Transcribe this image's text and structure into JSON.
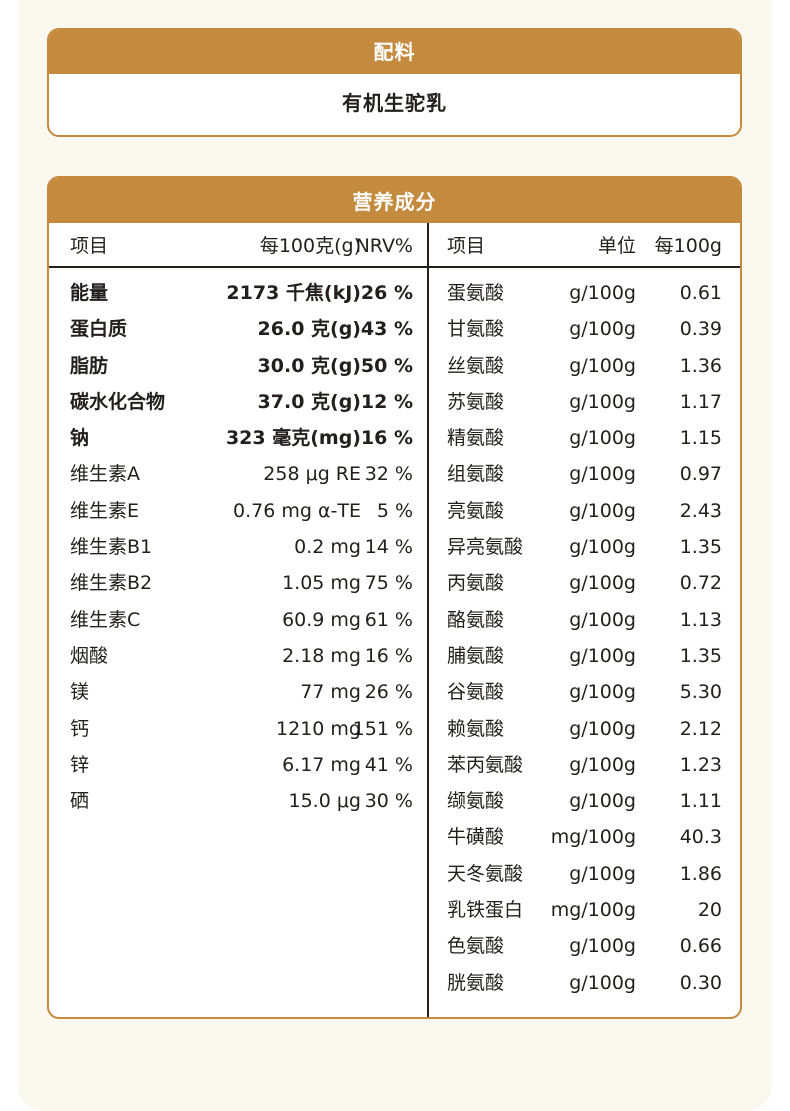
{
  "ingredients": {
    "title": "配料",
    "value": "有机生驼乳"
  },
  "nutrition": {
    "title": "营养成分",
    "left_headers": [
      "项目",
      "每100克(g)",
      "NRV%"
    ],
    "right_headers": [
      "项目",
      "单位",
      "每100g"
    ],
    "left_rows": [
      {
        "name": "能量",
        "amount": "2173 千焦(kJ)",
        "nrv": "26 %",
        "bold": true
      },
      {
        "name": "蛋白质",
        "amount": "26.0 克(g)",
        "nrv": "43 %",
        "bold": true
      },
      {
        "name": "脂肪",
        "amount": "30.0 克(g)",
        "nrv": "50 %",
        "bold": true
      },
      {
        "name": "碳水化合物",
        "amount": "37.0 克(g)",
        "nrv": "12 %",
        "bold": true
      },
      {
        "name": "钠",
        "amount": "323 毫克(mg)",
        "nrv": "16 %",
        "bold": true
      },
      {
        "name": "维生素A",
        "amount": "258 μg RE",
        "nrv": "32 %",
        "bold": false
      },
      {
        "name": "维生素E",
        "amount": "0.76 mg α-TE",
        "nrv": "5 %",
        "bold": false
      },
      {
        "name": "维生素B1",
        "amount": "0.2 mg",
        "nrv": "14 %",
        "bold": false
      },
      {
        "name": "维生素B2",
        "amount": "1.05 mg",
        "nrv": "75 %",
        "bold": false
      },
      {
        "name": "维生素C",
        "amount": "60.9 mg",
        "nrv": "61 %",
        "bold": false
      },
      {
        "name": "烟酸",
        "amount": "2.18 mg",
        "nrv": "16 %",
        "bold": false
      },
      {
        "name": "镁",
        "amount": "77 mg",
        "nrv": "26 %",
        "bold": false
      },
      {
        "name": "钙",
        "amount": "1210 mg",
        "nrv": "151 %",
        "bold": false
      },
      {
        "name": "锌",
        "amount": "6.17 mg",
        "nrv": "41 %",
        "bold": false
      },
      {
        "name": "硒",
        "amount": "15.0 μg",
        "nrv": "30 %",
        "bold": false
      }
    ],
    "right_rows": [
      {
        "name": "蛋氨酸",
        "unit": "g/100g",
        "value": "0.61"
      },
      {
        "name": "甘氨酸",
        "unit": "g/100g",
        "value": "0.39"
      },
      {
        "name": "丝氨酸",
        "unit": "g/100g",
        "value": "1.36"
      },
      {
        "name": "苏氨酸",
        "unit": "g/100g",
        "value": "1.17"
      },
      {
        "name": "精氨酸",
        "unit": "g/100g",
        "value": "1.15"
      },
      {
        "name": "组氨酸",
        "unit": "g/100g",
        "value": "0.97"
      },
      {
        "name": "亮氨酸",
        "unit": "g/100g",
        "value": "2.43"
      },
      {
        "name": "异亮氨酸",
        "unit": "g/100g",
        "value": "1.35"
      },
      {
        "name": "丙氨酸",
        "unit": "g/100g",
        "value": "0.72"
      },
      {
        "name": "酪氨酸",
        "unit": "g/100g",
        "value": "1.13"
      },
      {
        "name": "脯氨酸",
        "unit": "g/100g",
        "value": "1.35"
      },
      {
        "name": "谷氨酸",
        "unit": "g/100g",
        "value": "5.30"
      },
      {
        "name": "赖氨酸",
        "unit": "g/100g",
        "value": "2.12"
      },
      {
        "name": "苯丙氨酸",
        "unit": "g/100g",
        "value": "1.23"
      },
      {
        "name": "缬氨酸",
        "unit": "g/100g",
        "value": "1.11"
      },
      {
        "name": "牛磺酸",
        "unit": "mg/100g",
        "value": "40.3"
      },
      {
        "name": "天冬氨酸",
        "unit": "g/100g",
        "value": "1.86"
      },
      {
        "name": "乳铁蛋白",
        "unit": "mg/100g",
        "value": "20"
      },
      {
        "name": "色氨酸",
        "unit": "g/100g",
        "value": "0.66"
      },
      {
        "name": "胱氨酸",
        "unit": "g/100g",
        "value": "0.30"
      }
    ]
  }
}
